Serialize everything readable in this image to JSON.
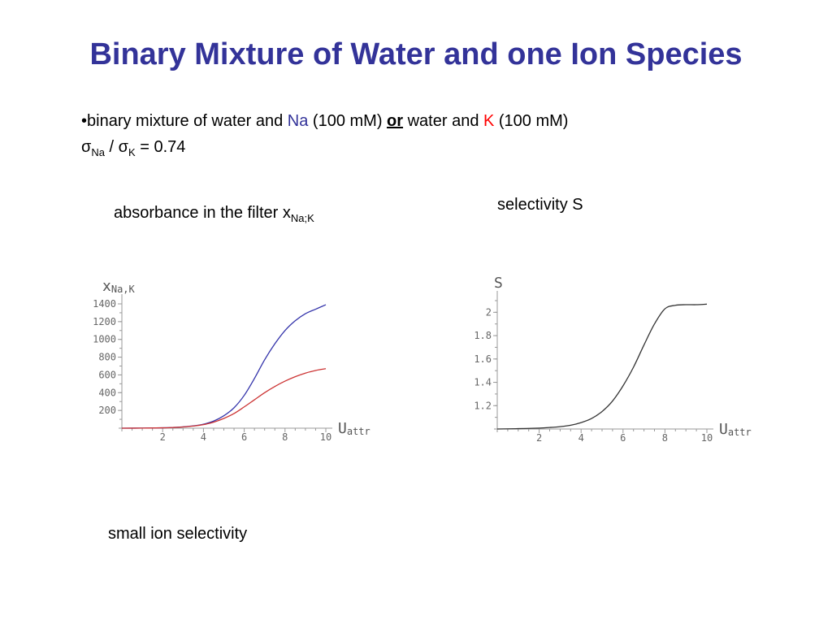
{
  "slide": {
    "title": "Binary Mixture of Water and one Ion Species",
    "bullet1": {
      "prefix": "•binary mixture of water and ",
      "ion1": "Na",
      "conc1": " (100 mM) ",
      "or": "or",
      "mid": " water and ",
      "ion2": "K",
      "conc2": " (100 mM)"
    },
    "bullet2": {
      "glyph": "",
      "sigma1": "σ",
      "sub1": "Na",
      "sep": " / ",
      "sigma2": "σ",
      "sub2": "K",
      "value": " = 0.74"
    },
    "label_absorbance": "absorbance in the filter x",
    "label_absorbance_sub": "Na;K",
    "label_selectivity": "selectivity S",
    "label_footer": "small ion selectivity"
  },
  "chart_data": [
    {
      "type": "line",
      "ylabel_main": "x",
      "ylabel_sub": "Na,K",
      "xlabel_main": "U",
      "xlabel_sub": "attr",
      "xlim": [
        0,
        10
      ],
      "ylim": [
        0,
        1400
      ],
      "xticks": [
        2,
        4,
        6,
        8,
        10
      ],
      "yticks": [
        200,
        400,
        600,
        800,
        1000,
        1200,
        1400
      ],
      "series": [
        {
          "color": "#3333aa",
          "x": [
            0,
            1,
            2,
            2.5,
            3,
            3.5,
            4,
            4.5,
            5,
            5.5,
            6,
            6.5,
            7,
            7.5,
            8,
            8.5,
            9,
            9.5,
            10
          ],
          "y": [
            0,
            1,
            4,
            8,
            15,
            26,
            45,
            80,
            140,
            230,
            370,
            560,
            770,
            950,
            1100,
            1210,
            1290,
            1340,
            1390
          ]
        },
        {
          "color": "#cc3333",
          "x": [
            0,
            1,
            2,
            2.5,
            3,
            3.5,
            4,
            4.5,
            5,
            5.5,
            6,
            6.5,
            7,
            7.5,
            8,
            8.5,
            9,
            9.5,
            10
          ],
          "y": [
            0,
            1,
            4,
            8,
            14,
            24,
            40,
            68,
            110,
            165,
            240,
            320,
            400,
            470,
            530,
            580,
            620,
            650,
            670
          ]
        }
      ]
    },
    {
      "type": "line",
      "ylabel_main": "S",
      "xlabel_main": "U",
      "xlabel_sub": "attr",
      "xlim": [
        0,
        10
      ],
      "ylim": [
        1,
        2.1
      ],
      "xticks": [
        2,
        4,
        6,
        8,
        10
      ],
      "yticks": [
        1.2,
        1.4,
        1.6,
        1.8,
        2
      ],
      "series": [
        {
          "color": "#333333",
          "x": [
            0,
            1,
            2,
            2.5,
            3,
            3.5,
            4,
            4.5,
            5,
            5.5,
            6,
            6.5,
            7,
            7.5,
            8,
            8.5,
            9,
            9.5,
            10
          ],
          "y": [
            1.0,
            1.003,
            1.008,
            1.013,
            1.02,
            1.032,
            1.055,
            1.09,
            1.15,
            1.24,
            1.37,
            1.53,
            1.72,
            1.9,
            2.03,
            2.06,
            2.065,
            2.065,
            2.07
          ]
        }
      ]
    }
  ]
}
